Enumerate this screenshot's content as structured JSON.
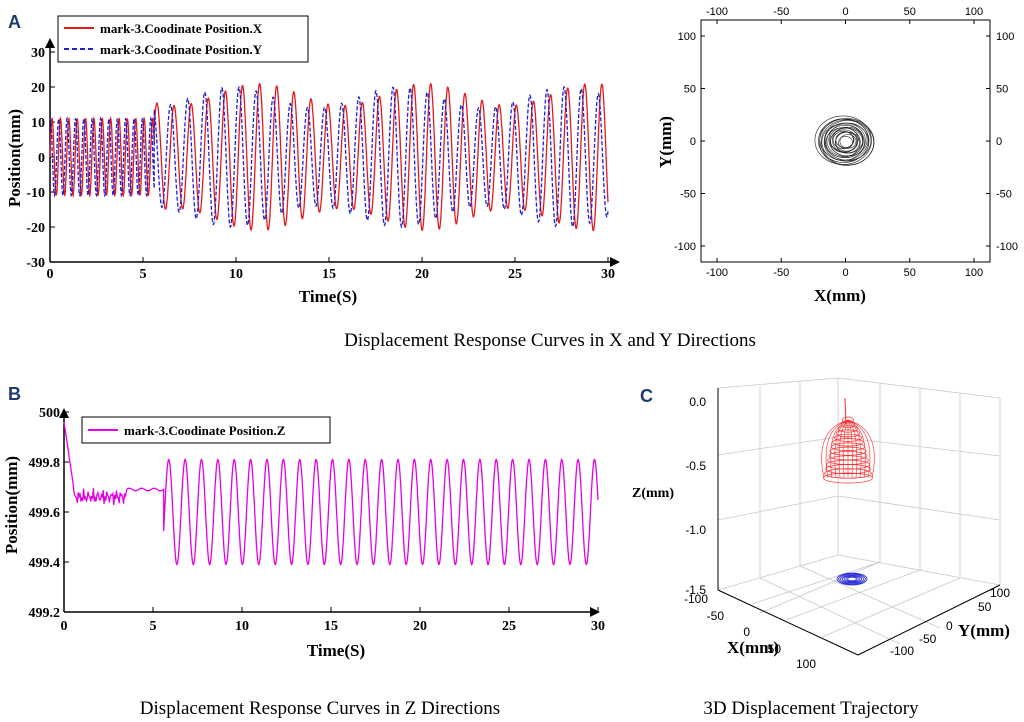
{
  "panels": {
    "a": "A",
    "b": "B",
    "c": "C"
  },
  "captions": {
    "xy": "Displacement Response Curves in X and Y Directions",
    "z": "Displacement Response Curves in Z Directions",
    "traj": "3D Displacement Trajectory"
  },
  "colors": {
    "x": "#e41a1c",
    "y": "#1f1fd6",
    "z": "#e600e6",
    "traj_upper": "#ff2a2a",
    "traj_lower": "#2a2ad6"
  },
  "chart_data": [
    {
      "id": "xy-time",
      "type": "line",
      "xlabel": "Time(S)",
      "ylabel": "Position(mm)",
      "xlim": [
        0,
        30
      ],
      "ylim": [
        -30,
        30
      ],
      "xticks": [
        "0",
        "5",
        "10",
        "15",
        "20",
        "25",
        "30"
      ],
      "yticks": [
        "-30",
        "-20",
        "-10",
        "0",
        "10",
        "20",
        "30"
      ],
      "legend_position": "top-left",
      "series": [
        {
          "name": "mark-3.Coodinate Position.X",
          "style": "solid",
          "segments": [
            {
              "t0": 0,
              "t1": 5.6,
              "amplitude": 11,
              "period": 0.45
            },
            {
              "t0": 5.6,
              "t1": 30,
              "amplitude": 21,
              "period": 0.92
            }
          ]
        },
        {
          "name": "mark-3.Coodinate Position.Y",
          "style": "dashed",
          "segments": [
            {
              "t0": 0,
              "t1": 5.6,
              "amplitude": 11,
              "period": 0.45
            },
            {
              "t0": 5.6,
              "t1": 30,
              "amplitude": 20,
              "period": 0.92
            }
          ]
        }
      ]
    },
    {
      "id": "xy-trajectory",
      "type": "scatter",
      "xlabel": "X(mm)",
      "ylabel": "Y(mm)",
      "xlim": [
        -100,
        100
      ],
      "ylim": [
        -100,
        100
      ],
      "xticks": [
        "-100",
        "-50",
        "0",
        "50",
        "100"
      ],
      "yticks": [
        "-100",
        "-50",
        "0",
        "50",
        "100"
      ],
      "cluster_center": [
        0,
        0
      ],
      "cluster_radius_mm": 21
    },
    {
      "id": "z-time",
      "type": "line",
      "xlabel": "Time(S)",
      "ylabel": "Position(mm)",
      "xlim": [
        0,
        30
      ],
      "ylim": [
        499.2,
        500
      ],
      "xticks": [
        "0",
        "5",
        "10",
        "15",
        "20",
        "25",
        "30"
      ],
      "yticks": [
        "499.2",
        "499.4",
        "499.6",
        "499.8",
        "500"
      ],
      "legend_position": "top-left",
      "series": [
        {
          "name": "mark-3.Coodinate Position.Z",
          "segments": [
            {
              "t0": 0,
              "t1": 5.6,
              "baseline": 499.69,
              "noise": 0.03
            },
            {
              "t0": 5.6,
              "t1": 30,
              "center": 499.6,
              "amplitude": 0.21,
              "period": 0.92
            }
          ]
        }
      ]
    },
    {
      "id": "traj-3d",
      "type": "scatter",
      "xlabel": "X(mm)",
      "ylabel": "Y(mm)",
      "zlabel": "Z(mm)",
      "xlim": [
        -100,
        100
      ],
      "ylim": [
        -100,
        100
      ],
      "zlim": [
        -1.5,
        0
      ],
      "xticks": [
        "-100",
        "-50",
        "0",
        "50",
        "100"
      ],
      "yticks": [
        "-100",
        "-50",
        "0",
        "50",
        "100"
      ],
      "zticks": [
        "0.0",
        "-0.5",
        "-1.0",
        "-1.5"
      ],
      "surfaces": [
        {
          "name": "upper-trajectory",
          "z_top": -0.15,
          "z_bottom": -0.45
        },
        {
          "name": "projection",
          "z": -1.5
        }
      ]
    }
  ]
}
